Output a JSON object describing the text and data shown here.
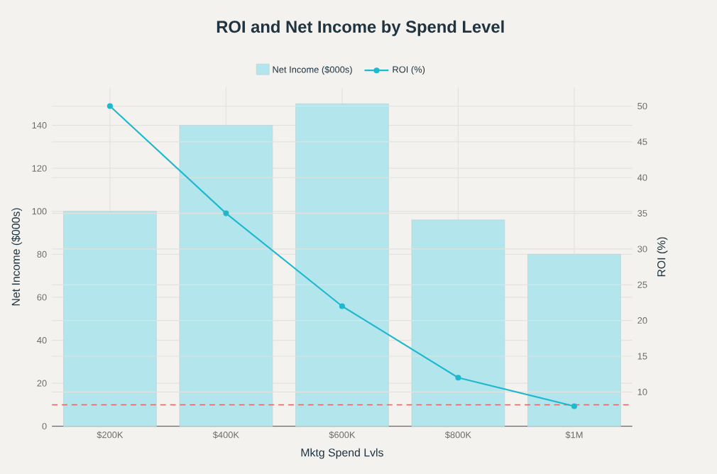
{
  "chart_data": {
    "type": "bar",
    "title": "ROI and Net Income by Spend Level",
    "xlabel": "Mktg Spend Lvls",
    "ylabel": "Net Income ($000s)",
    "y2label": "ROI (%)",
    "categories": [
      "$200K",
      "$400K",
      "$600K",
      "$800K",
      "$1M"
    ],
    "series": [
      {
        "name": "Net Income ($000s)",
        "color": "#b3e5ec",
        "values": [
          100,
          140,
          150,
          96,
          80
        ]
      },
      {
        "name": "ROI (%)",
        "type": "line",
        "axis": "y2",
        "color": "#1fb8cd",
        "marker": "circle",
        "values": [
          50,
          35,
          22,
          12,
          8
        ]
      }
    ],
    "ylim": [
      0,
      157.6
    ],
    "yticks": [
      0,
      20,
      40,
      60,
      80,
      100,
      120,
      140
    ],
    "y2lim": [
      5.2,
      52.6
    ],
    "y2ticks": [
      10,
      15,
      20,
      25,
      30,
      35,
      40,
      45,
      50
    ],
    "ref_lines": [
      {
        "axis": "y",
        "value": 10,
        "color": "#e06666",
        "line_style": "dashed"
      }
    ],
    "grid": true,
    "legend": "top"
  }
}
